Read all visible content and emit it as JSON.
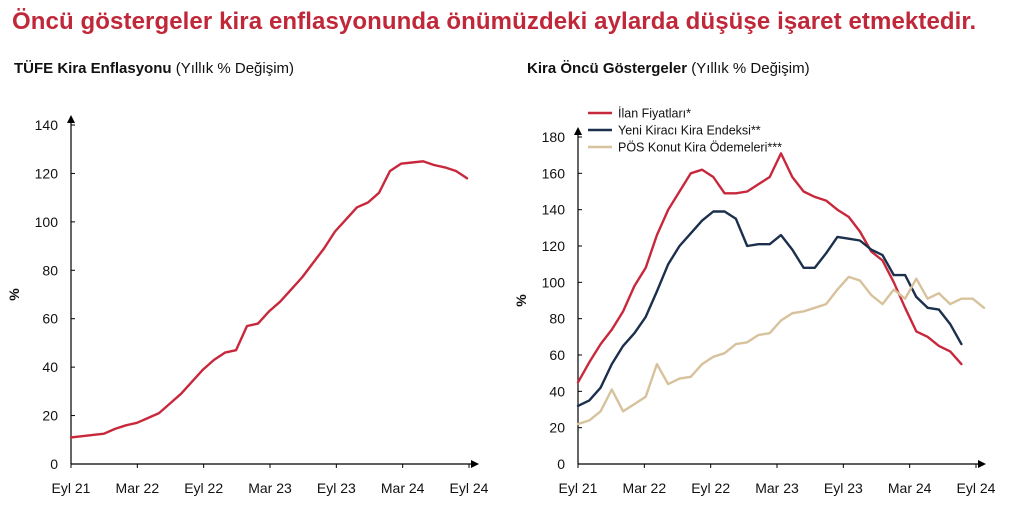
{
  "headline": "Öncü göstergeler kira enflasyonunda önümüzdeki aylarda düşüşe işaret etmektedir.",
  "colors": {
    "headline": "#c0283a",
    "red": "#c8283c",
    "navy": "#1c2f4d",
    "beige": "#d7c29c",
    "axis": "#000000"
  },
  "chart_data": [
    {
      "type": "line",
      "title_bold": "TÜFE Kira Enflasyonu",
      "title_rest": " (Yıllık % Değişim)",
      "xlabel": "",
      "ylabel": "%",
      "ylim": [
        0,
        140
      ],
      "yticks": [
        0,
        20,
        40,
        60,
        80,
        100,
        120,
        140
      ],
      "xtick_labels": [
        "Eyl 21",
        "Mar 22",
        "Eyl 22",
        "Mar 23",
        "Eyl 23",
        "Mar 24",
        "Eyl 24"
      ],
      "grid": false,
      "series": [
        {
          "color": "#c8283c",
          "values": [
            11,
            11.5,
            12,
            12.5,
            14.5,
            16,
            17,
            19,
            21,
            25,
            29,
            34,
            39,
            43,
            46,
            47,
            57,
            58,
            63,
            67,
            72,
            77,
            83,
            89,
            96,
            101,
            106,
            108,
            112,
            121,
            124,
            124.5,
            125,
            123.5,
            122.5,
            121,
            118
          ]
        }
      ]
    },
    {
      "type": "line",
      "title_bold": "Kira Öncü Göstergeler",
      "title_rest": " (Yıllık % Değişim)",
      "xlabel": "",
      "ylabel": "%",
      "ylim": [
        0,
        180
      ],
      "yticks": [
        0,
        20,
        40,
        60,
        80,
        100,
        120,
        140,
        160,
        180
      ],
      "xtick_labels": [
        "Eyl 21",
        "Mar 22",
        "Eyl 22",
        "Mar 23",
        "Eyl 23",
        "Mar 24",
        "Eyl 24"
      ],
      "grid": false,
      "legend_position": "top-left",
      "series": [
        {
          "name": "İlan Fiyatları*",
          "color": "#c8283c",
          "values": [
            45,
            56,
            66,
            74,
            84,
            98,
            108,
            126,
            140,
            150,
            160,
            162,
            158,
            149,
            149,
            150,
            154,
            158,
            171,
            158,
            150,
            147,
            145,
            140,
            136,
            128,
            117,
            112,
            100,
            86,
            73,
            70,
            65,
            62,
            55
          ]
        },
        {
          "name": "Yeni Kiracı Kira Endeksi**",
          "color": "#1c2f4d",
          "values": [
            32,
            35,
            42,
            55,
            65,
            72,
            81,
            95,
            110,
            120,
            127,
            134,
            139,
            139,
            135,
            120,
            121,
            121,
            126,
            118,
            108,
            108,
            116,
            125,
            124,
            123,
            118,
            115,
            104,
            104,
            92,
            86,
            85,
            77,
            66
          ]
        },
        {
          "name": "PÖS Konut Kira Ödemeleri***",
          "color": "#d7c29c",
          "values": [
            22,
            24,
            29,
            41,
            29,
            33,
            37,
            55,
            44,
            47,
            48,
            55,
            59,
            61,
            66,
            67,
            71,
            72,
            79,
            83,
            84,
            86,
            88,
            96,
            103,
            101,
            93,
            88,
            96,
            91,
            102,
            91,
            94,
            88,
            91,
            91,
            86
          ]
        }
      ]
    }
  ]
}
